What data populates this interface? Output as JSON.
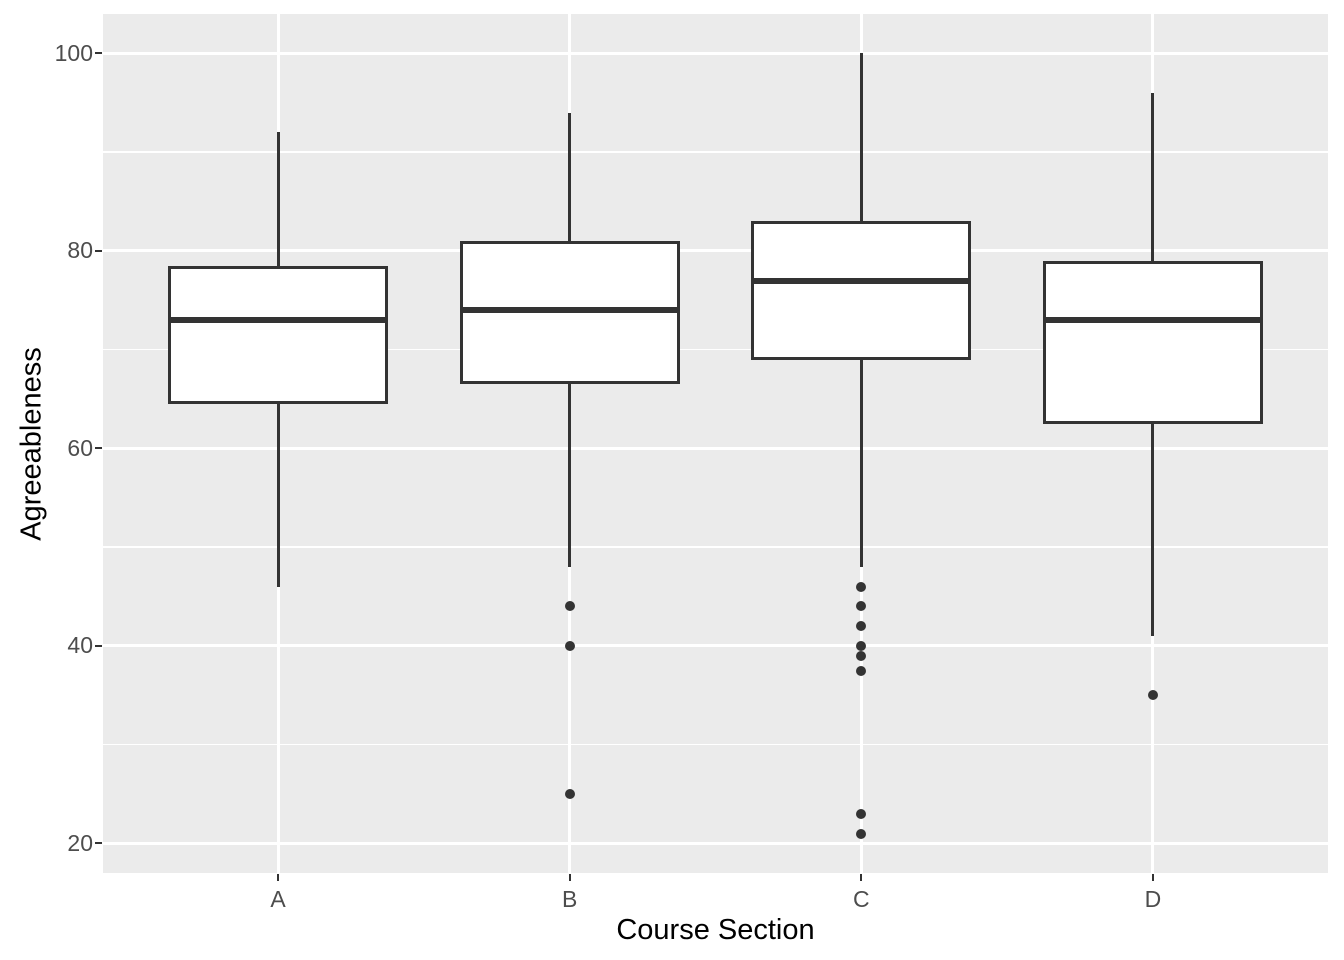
{
  "chart_data": {
    "type": "boxplot",
    "title": "",
    "xlabel": "Course Section",
    "ylabel": "Agreeableness",
    "categories": [
      "A",
      "B",
      "C",
      "D"
    ],
    "series": [
      {
        "category": "A",
        "whisker_low": 46,
        "q1": 64.5,
        "median": 73,
        "q3": 78.5,
        "whisker_high": 92,
        "outliers": []
      },
      {
        "category": "B",
        "whisker_low": 48,
        "q1": 66.5,
        "median": 74,
        "q3": 81,
        "whisker_high": 94,
        "outliers": [
          44,
          40,
          25
        ]
      },
      {
        "category": "C",
        "whisker_low": 48,
        "q1": 69,
        "median": 77,
        "q3": 83,
        "whisker_high": 100,
        "outliers": [
          46,
          44,
          42,
          40,
          39,
          37.5,
          23,
          21
        ]
      },
      {
        "category": "D",
        "whisker_low": 41,
        "q1": 62.5,
        "median": 73,
        "q3": 79,
        "whisker_high": 96,
        "outliers": [
          35
        ]
      }
    ],
    "y_axis": {
      "label": "Agreeableness",
      "major_ticks": [
        20,
        40,
        60,
        80,
        100
      ],
      "minor_gridlines": [
        30,
        50,
        70,
        90
      ],
      "domain": [
        17,
        104
      ],
      "grid": true
    },
    "x_axis": {
      "label": "Course Section",
      "tick_labels": [
        "A",
        "B",
        "C",
        "D"
      ],
      "center_fractions": [
        0.14286,
        0.38095,
        0.61905,
        0.85714
      ]
    },
    "legend": "none",
    "style": {
      "panel_background": "#EBEBEB",
      "grid_color": "#FFFFFF",
      "box_line_color": "#333333",
      "box_fill": "#FFFFFF",
      "outlier_color": "#333333",
      "tick_mark_color": "#333333",
      "tick_label_color": "#4D4D4D",
      "axis_title_color": "#000000",
      "background": "#FFFFFF"
    }
  }
}
